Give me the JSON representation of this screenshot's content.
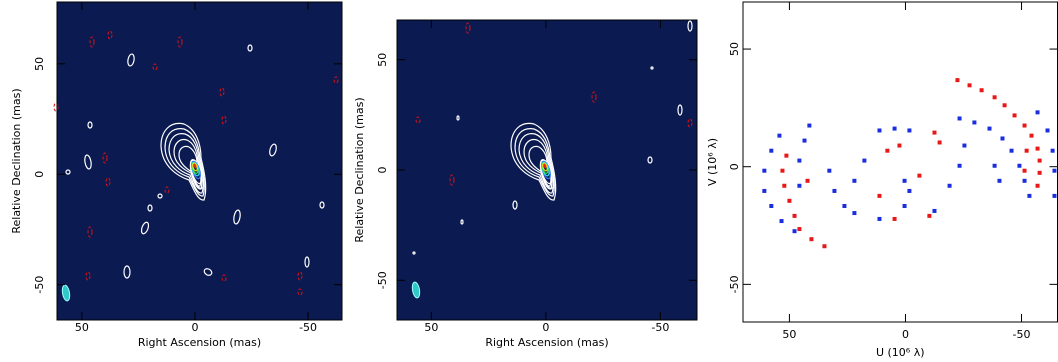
{
  "chart_data": [
    {
      "type": "image",
      "xlabel": "Right Ascension  (mas)",
      "ylabel": "Relative Declination  (mas)",
      "xlim": [
        61,
        -65
      ],
      "ylim": [
        -66,
        78
      ],
      "xticks": [
        50,
        0,
        -50
      ],
      "yticks": [
        -50,
        0,
        50
      ],
      "background": "#0b1a50"
    },
    {
      "type": "image",
      "xlabel": "Right Ascension  (mas)",
      "ylabel": "Relative Declination  (mas)",
      "xlim": [
        65,
        -66
      ],
      "ylim": [
        -68,
        68
      ],
      "xticks": [
        50,
        0,
        -50
      ],
      "yticks": [
        -50,
        0,
        50
      ],
      "background": "#0b1a50"
    },
    {
      "type": "scatter",
      "xlabel": "U (10⁶ λ)",
      "ylabel": "V (10⁶ λ)",
      "xlim": [
        70,
        -65.5
      ],
      "ylim": [
        -66,
        70
      ],
      "xticks": [
        50,
        0,
        -50
      ],
      "yticks": [
        -50,
        0,
        50
      ],
      "series": [
        {
          "color": "#e81818",
          "x": [
            -22.4,
            -27.6,
            -32.8,
            -38.4,
            -42.7,
            -47.0,
            -51.3,
            -54.3,
            -56.9,
            -57.8,
            -57.8,
            -56.9,
            -52.2,
            -51.3,
            51.3,
            53.0,
            52.2,
            50.0,
            47.8,
            45.7,
            40.5,
            34.9,
            42.2,
            7.8,
            2.6,
            -12.5,
            -14.7,
            11.2,
            -6.0,
            -10.3,
            4.7
          ],
          "y": [
            36.8,
            34.6,
            32.5,
            29.5,
            26.1,
            21.8,
            17.5,
            13.2,
            7.7,
            2.6,
            -2.6,
            -8.1,
            6.8,
            -1.7,
            4.7,
            -1.7,
            -8.1,
            -14.5,
            -20.9,
            -26.5,
            -30.8,
            -33.8,
            -6.0,
            6.8,
            9.0,
            14.5,
            10.3,
            -12.4,
            -3.8,
            -20.9,
            -22.2
          ]
        },
        {
          "color": "#1a2ee0",
          "x": [
            -23.3,
            -29.7,
            -36.2,
            -41.8,
            -45.7,
            -49.1,
            -51.3,
            -53.4,
            -56.9,
            -61.2,
            -63.4,
            -64.2,
            -64.2,
            -38.4,
            -40.5,
            54.3,
            57.8,
            60.8,
            60.8,
            57.8,
            53.4,
            47.8,
            43.5,
            45.7,
            45.7,
            41.4,
            32.8,
            30.6,
            26.3,
            22.0,
            11.2,
            4.7,
            -1.7,
            22.0,
            17.7,
            0.4,
            -1.7,
            -19.0,
            -23.3,
            -25.4,
            -12.5,
            0.4,
            11.2
          ],
          "y": [
            20.5,
            18.8,
            16.2,
            12.0,
            6.8,
            0.4,
            -6.0,
            -12.4,
            23.1,
            15.4,
            6.8,
            -1.7,
            -12.4,
            0.4,
            -6.0,
            13.2,
            6.8,
            -1.7,
            -10.3,
            -16.7,
            -23.1,
            -27.4,
            11.1,
            2.6,
            -8.1,
            17.5,
            -1.7,
            -10.3,
            -16.7,
            -19.7,
            15.4,
            16.2,
            15.4,
            -6.0,
            2.6,
            -6.0,
            -10.3,
            -8.1,
            0.4,
            9.0,
            -18.8,
            -16.7,
            -22.2
          ]
        }
      ]
    }
  ]
}
